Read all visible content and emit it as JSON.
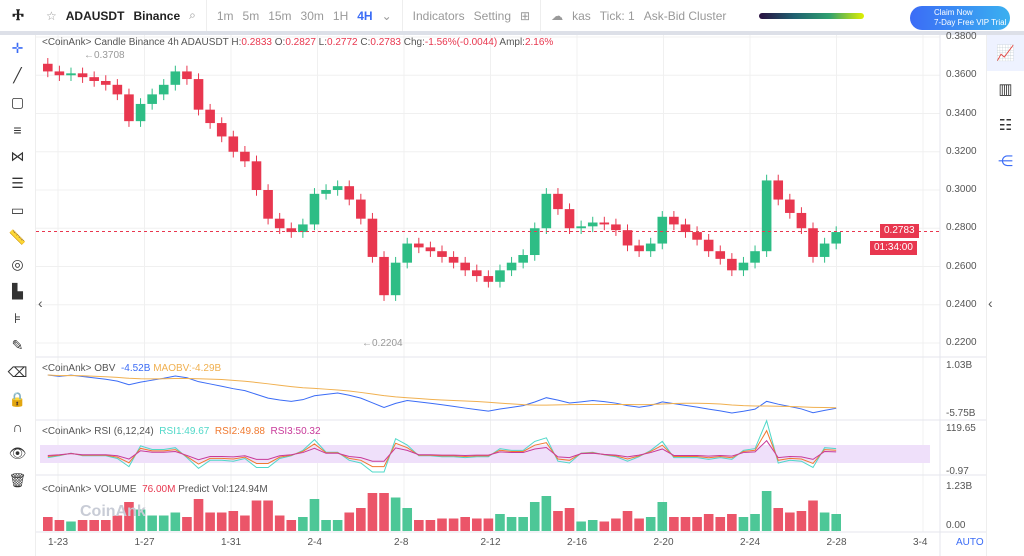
{
  "toolbar": {
    "logo": "Ⰰ",
    "symbol": "ADAUSDT",
    "exchange": "Binance",
    "intervals": [
      "1m",
      "5m",
      "15m",
      "30m",
      "1H"
    ],
    "active_interval": "4H",
    "indicators": "Indicators",
    "setting": "Setting",
    "kas": "kas",
    "tick": "Tick: 1",
    "cluster": "Ask-Bid Cluster",
    "vip_line1": "Claim Now",
    "vip_line2": "7-Day Free VIP Trial"
  },
  "legend": {
    "prefix": "<CoinAnk> Candle  Binance 4h ADAUSDT",
    "H": "0.2833",
    "O": "0.2827",
    "L": "0.2772",
    "C": "0.2783",
    "chg": "-1.56%(-0.0044)",
    "ampl": "2.16%",
    "max_label": "←0.3708",
    "min_label": "←0.2204"
  },
  "price": {
    "current": "0.2783",
    "countdown": "01:34:00",
    "ticks": [
      "0.3800",
      "0.3600",
      "0.3400",
      "0.3200",
      "0.3000",
      "0.2800",
      "0.2600",
      "0.2400",
      "0.2200"
    ]
  },
  "obv": {
    "label": "<CoinAnk> OBV",
    "value": "-4.52B",
    "ma": "MAOBV:-4.29B",
    "top": "1.03B",
    "bottom": "-5.75B"
  },
  "rsi": {
    "label": "<CoinAnk> RSI  (6,12,24)",
    "rsi1": "RSI1:49.67",
    "rsi2": "RSI2:49.88",
    "rsi3": "RSI3:50.32",
    "top": "119.65",
    "bottom": "-0.97"
  },
  "volume": {
    "label": "<CoinAnk> VOLUME",
    "value": "76.00M",
    "predict": "Predict Vol:124.94M",
    "top": "1.23B",
    "bottom": "0.00",
    "watermark": "CoinAnk"
  },
  "xaxis": [
    "1-23",
    "1-27",
    "1-31",
    "2-4",
    "2-8",
    "2-12",
    "2-16",
    "2-20",
    "2-24",
    "2-28",
    "3-4"
  ],
  "auto": "AUTO",
  "colors": {
    "up": "#2ebd85",
    "down": "#e8374f",
    "accent": "#3b6cf6"
  },
  "chart_data": {
    "type": "candlestick",
    "interval": "4h",
    "ylim": [
      0.22,
      0.38
    ],
    "closes": [
      0.362,
      0.36,
      0.361,
      0.359,
      0.357,
      0.355,
      0.35,
      0.336,
      0.345,
      0.35,
      0.355,
      0.362,
      0.358,
      0.342,
      0.335,
      0.328,
      0.32,
      0.315,
      0.3,
      0.285,
      0.28,
      0.278,
      0.282,
      0.298,
      0.3,
      0.302,
      0.295,
      0.285,
      0.265,
      0.245,
      0.262,
      0.272,
      0.27,
      0.268,
      0.265,
      0.262,
      0.258,
      0.255,
      0.252,
      0.258,
      0.262,
      0.266,
      0.28,
      0.298,
      0.29,
      0.28,
      0.281,
      0.283,
      0.282,
      0.279,
      0.271,
      0.268,
      0.272,
      0.286,
      0.282,
      0.278,
      0.274,
      0.268,
      0.264,
      0.258,
      0.262,
      0.268,
      0.305,
      0.295,
      0.288,
      0.28,
      0.265,
      0.272,
      0.278
    ]
  }
}
